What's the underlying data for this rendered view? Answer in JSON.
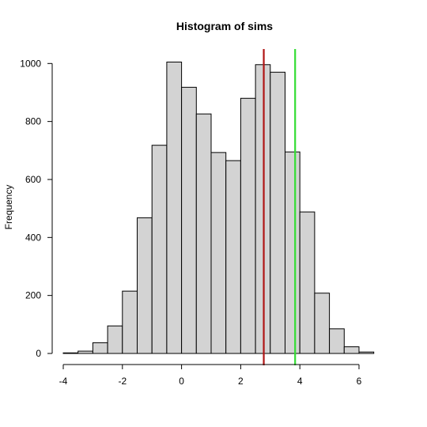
{
  "chart_data": {
    "type": "bar",
    "title": "Histogram of sims",
    "xlabel": "",
    "ylabel": "Frequency",
    "xlim": [
      -4,
      7
    ],
    "ylim": [
      0,
      1050
    ],
    "xticks": [
      -4,
      -2,
      0,
      2,
      4,
      6
    ],
    "yticks": [
      0,
      200,
      400,
      600,
      800,
      1000
    ],
    "grid": false,
    "bin_width": 0.5,
    "bins": [
      {
        "start": -4.0,
        "end": -3.5,
        "count": 2
      },
      {
        "start": -3.5,
        "end": -3.0,
        "count": 8
      },
      {
        "start": -3.0,
        "end": -2.5,
        "count": 37
      },
      {
        "start": -2.5,
        "end": -2.0,
        "count": 95
      },
      {
        "start": -2.0,
        "end": -1.5,
        "count": 215
      },
      {
        "start": -1.5,
        "end": -1.0,
        "count": 468
      },
      {
        "start": -1.0,
        "end": -0.5,
        "count": 718
      },
      {
        "start": -0.5,
        "end": 0.0,
        "count": 1005
      },
      {
        "start": 0.0,
        "end": 0.5,
        "count": 918
      },
      {
        "start": 0.5,
        "end": 1.0,
        "count": 826
      },
      {
        "start": 1.0,
        "end": 1.5,
        "count": 693
      },
      {
        "start": 1.5,
        "end": 2.0,
        "count": 665
      },
      {
        "start": 2.0,
        "end": 2.5,
        "count": 880
      },
      {
        "start": 2.5,
        "end": 3.0,
        "count": 996
      },
      {
        "start": 3.0,
        "end": 3.5,
        "count": 970
      },
      {
        "start": 3.5,
        "end": 4.0,
        "count": 695
      },
      {
        "start": 4.0,
        "end": 4.5,
        "count": 488
      },
      {
        "start": 4.5,
        "end": 5.0,
        "count": 208
      },
      {
        "start": 5.0,
        "end": 5.5,
        "count": 85
      },
      {
        "start": 5.5,
        "end": 6.0,
        "count": 23
      },
      {
        "start": 6.0,
        "end": 6.5,
        "count": 5
      }
    ],
    "reference_lines": [
      {
        "x": 2.78,
        "color": "#b01515"
      },
      {
        "x": 3.84,
        "color": "#33dd33"
      }
    ]
  }
}
